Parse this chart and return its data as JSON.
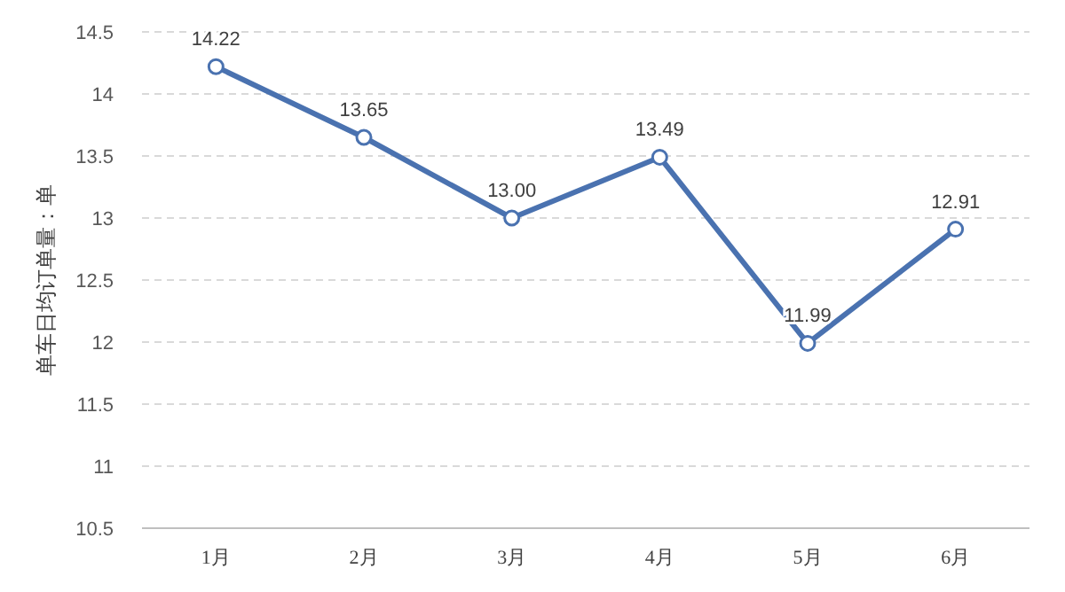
{
  "chart_data": {
    "type": "line",
    "ylabel": "单车日均订单量：单",
    "categories": [
      "1月",
      "2月",
      "3月",
      "4月",
      "5月",
      "6月"
    ],
    "series": [
      {
        "color": "#4a72b0",
        "values": [
          14.22,
          13.65,
          13.0,
          13.49,
          11.99,
          12.91
        ],
        "value_labels": [
          "14.22",
          "13.65",
          "13.00",
          "13.49",
          "11.99",
          "12.91"
        ]
      }
    ],
    "ylim": [
      10.5,
      14.5
    ],
    "yticks": [
      {
        "value": 10.5,
        "label": "10.5"
      },
      {
        "value": 11,
        "label": "11"
      },
      {
        "value": 11.5,
        "label": "11.5"
      },
      {
        "value": 12,
        "label": "12"
      },
      {
        "value": 12.5,
        "label": "12.5"
      },
      {
        "value": 13,
        "label": "13"
      },
      {
        "value": 13.5,
        "label": "13.5"
      },
      {
        "value": 14,
        "label": "14"
      },
      {
        "value": 14.5,
        "label": "14.5"
      }
    ],
    "grid": "y",
    "marker": "circle",
    "line_style": "solid"
  }
}
